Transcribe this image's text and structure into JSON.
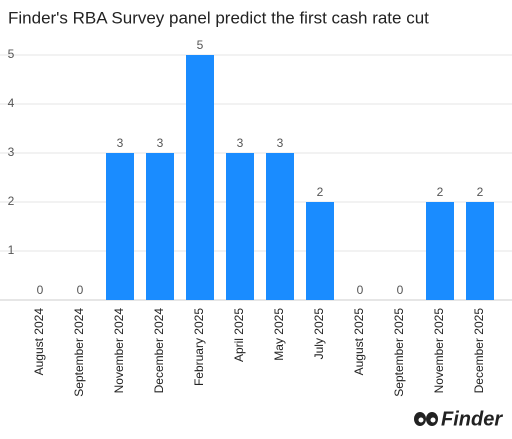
{
  "chart_data": {
    "type": "bar",
    "title": "Finder's RBA Survey panel predict the first cash rate cut",
    "categories": [
      "August 2024",
      "September 2024",
      "November 2024",
      "December 2024",
      "February 2025",
      "April 2025",
      "May 2025",
      "July 2025",
      "August 2025",
      "September 2025",
      "November 2025",
      "December 2025"
    ],
    "values": [
      0,
      0,
      3,
      3,
      5,
      3,
      3,
      2,
      0,
      0,
      2,
      2
    ],
    "color": "#1a8cff",
    "ylim": [
      0,
      5
    ],
    "yticks": [
      1,
      2,
      3,
      4,
      5
    ],
    "grid": true
  },
  "brand": "Finder"
}
